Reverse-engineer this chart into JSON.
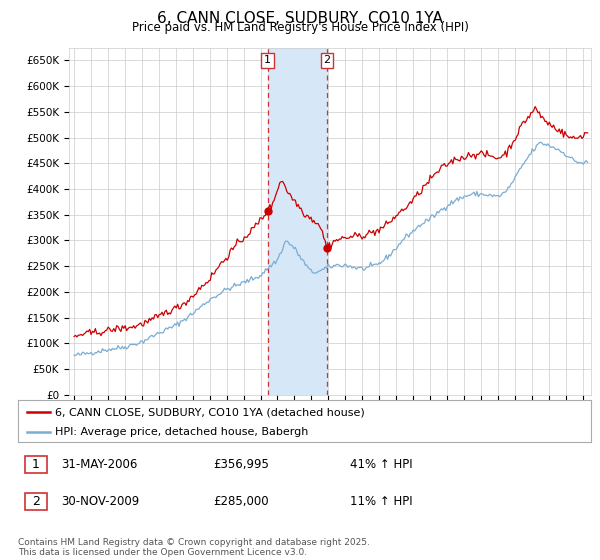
{
  "title": "6, CANN CLOSE, SUDBURY, CO10 1YA",
  "subtitle": "Price paid vs. HM Land Registry's House Price Index (HPI)",
  "ylabel_ticks": [
    "£0",
    "£50K",
    "£100K",
    "£150K",
    "£200K",
    "£250K",
    "£300K",
    "£350K",
    "£400K",
    "£450K",
    "£500K",
    "£550K",
    "£600K",
    "£650K"
  ],
  "ylim": [
    0,
    675000
  ],
  "xlim_start": 1994.7,
  "xlim_end": 2025.5,
  "sale1_date": 2006.42,
  "sale1_price": 356995,
  "sale2_date": 2009.92,
  "sale2_price": 285000,
  "line1_color": "#cc0000",
  "line2_color": "#7aadd4",
  "shade_color": "#d6e8f7",
  "vline_color": "#cc3333",
  "grid_color": "#cccccc",
  "background_color": "#ffffff",
  "legend1_label": "6, CANN CLOSE, SUDBURY, CO10 1YA (detached house)",
  "legend2_label": "HPI: Average price, detached house, Babergh",
  "annotation1_date": "31-MAY-2006",
  "annotation1_price": "£356,995",
  "annotation1_hpi": "41% ↑ HPI",
  "annotation2_date": "30-NOV-2009",
  "annotation2_price": "£285,000",
  "annotation2_hpi": "11% ↑ HPI",
  "footer": "Contains HM Land Registry data © Crown copyright and database right 2025.\nThis data is licensed under the Open Government Licence v3.0."
}
